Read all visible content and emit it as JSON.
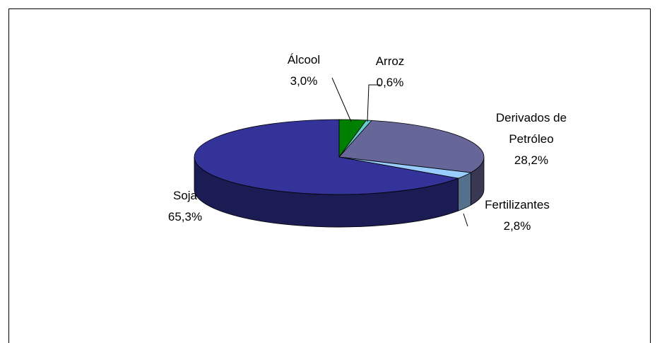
{
  "chart_data": {
    "type": "pie",
    "categories": [
      "Álcool",
      "Arroz",
      "Derivados de Petróleo",
      "Fertilizantes",
      "Soja"
    ],
    "values": [
      3.0,
      0.6,
      28.2,
      2.8,
      65.3
    ],
    "value_labels": [
      "3,0%",
      "0,6%",
      "28,2%",
      "2,8%",
      "65,3%"
    ],
    "colors": [
      "#008000",
      "#66cccc",
      "#666699",
      "#99ccff",
      "#333399"
    ]
  }
}
